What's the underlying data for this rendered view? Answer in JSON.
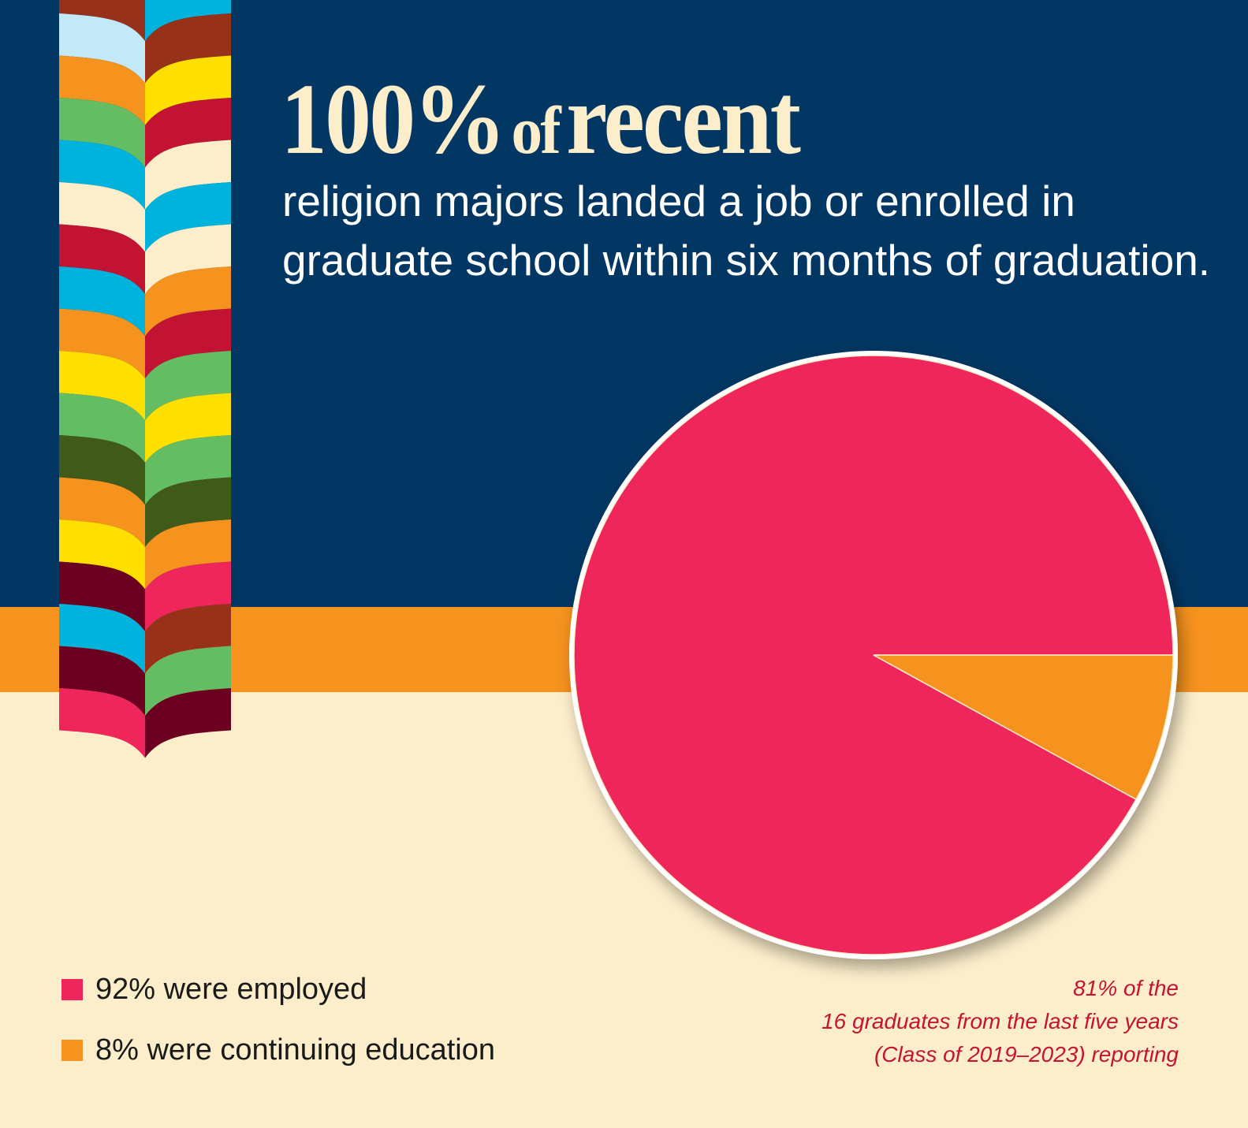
{
  "headline": {
    "number": "100%",
    "connector": "of",
    "word": "recent"
  },
  "subtitle": "religion majors landed a job or enrolled in graduate school within six months of graduation.",
  "colors": {
    "navy": "#023763",
    "orange_band": "#f6921e",
    "cream": "#fdeecb",
    "employed": "#ee265c",
    "continuing": "#f6921e",
    "note": "#c41432"
  },
  "ribbon": {
    "left": [
      "#97311a",
      "#c3e8f7",
      "#f6921e",
      "#64bc63",
      "#00b3dc",
      "#fdeecb",
      "#c21432",
      "#00b3dc",
      "#f6921e",
      "#ffdf00",
      "#64bc63",
      "#405a19",
      "#f6921e",
      "#ffdf00",
      "#6b0020",
      "#00b3dc",
      "#6b0020",
      "#ee265c"
    ],
    "right": [
      "#00b3dc",
      "#97311a",
      "#ffdf00",
      "#c21432",
      "#fdeecb",
      "#00b3dc",
      "#fdeecb",
      "#f6921e",
      "#c21432",
      "#64bc63",
      "#ffdf00",
      "#64bc63",
      "#405a19",
      "#f6921e",
      "#ee265c",
      "#97311a",
      "#64bc63",
      "#6b0020"
    ]
  },
  "chart_data": {
    "type": "pie",
    "title": "",
    "slices": [
      {
        "label": "92% were employed",
        "value": 92,
        "color": "#ee265c"
      },
      {
        "label": "8% were continuing education",
        "value": 8,
        "color": "#f6921e"
      }
    ],
    "legend_position": "bottom-left"
  },
  "note": {
    "line1": "81% of the",
    "line2": "16 graduates from the last five years",
    "line3": "(Class of 2019–2023) reporting"
  }
}
